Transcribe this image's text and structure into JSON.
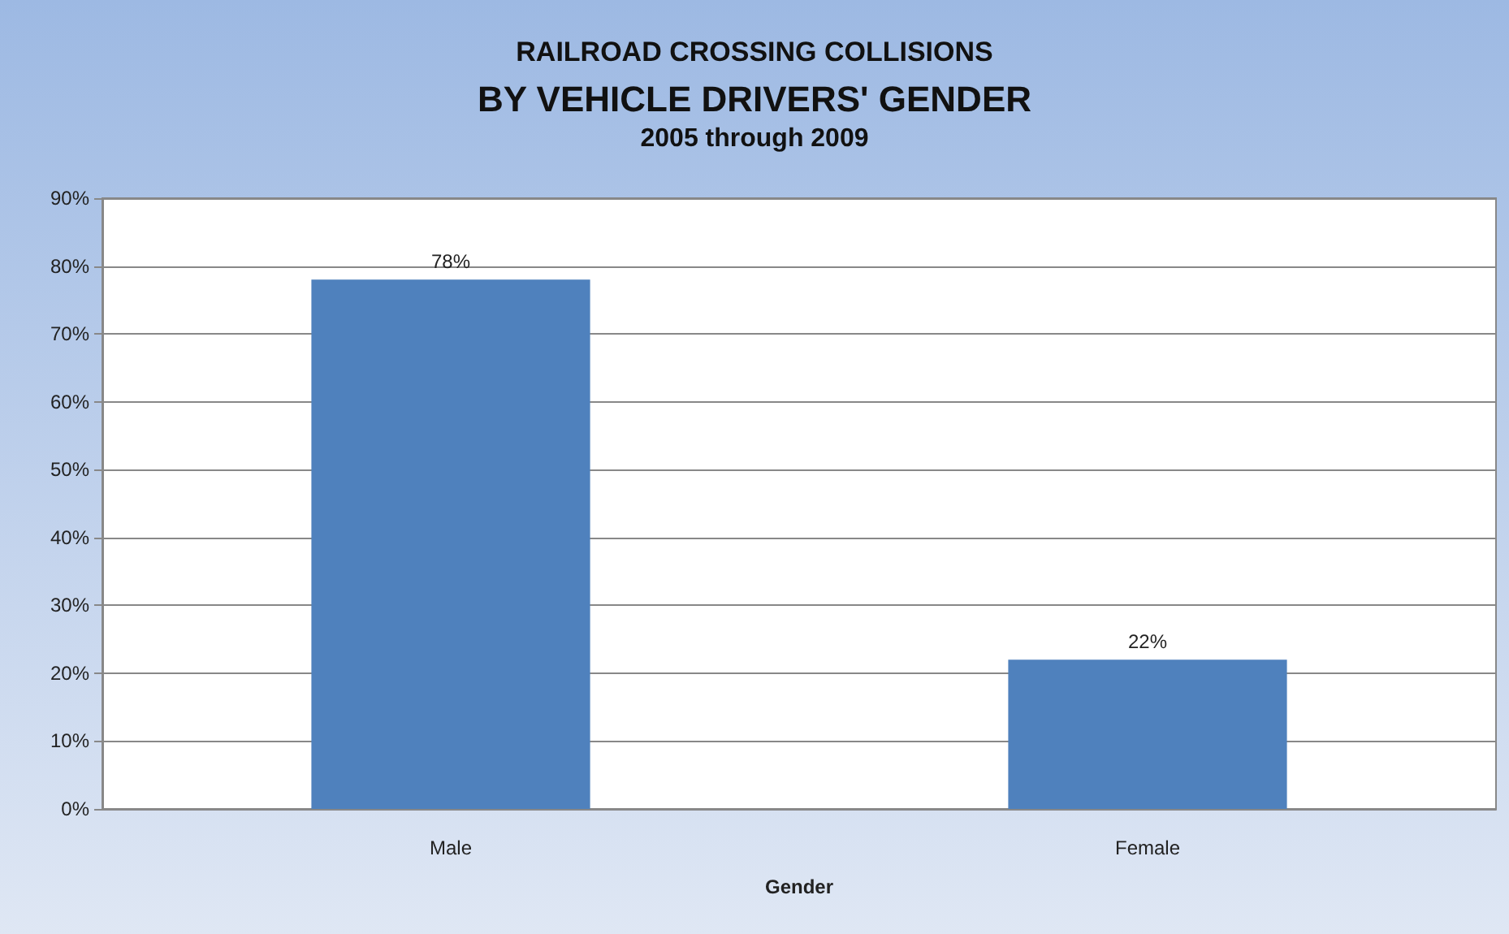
{
  "chart_data": {
    "type": "bar",
    "title": "RAILROAD CROSSING COLLISIONS\nBY VEHICLE DRIVERS' GENDER",
    "subtitle": "2005 through 2009",
    "xlabel": "Gender",
    "categories": [
      "Male",
      "Female"
    ],
    "values": [
      78,
      22
    ],
    "value_labels": [
      "78%",
      "22%"
    ],
    "color": "#4f81bd",
    "ylim": [
      0,
      90
    ],
    "yticks": [
      {
        "value": 0,
        "label": "0%"
      },
      {
        "value": 10,
        "label": "10%"
      },
      {
        "value": 20,
        "label": "20%"
      },
      {
        "value": 30,
        "label": "30%"
      },
      {
        "value": 40,
        "label": "40%"
      },
      {
        "value": 50,
        "label": "50%"
      },
      {
        "value": 60,
        "label": "60%"
      },
      {
        "value": 70,
        "label": "70%"
      },
      {
        "value": 80,
        "label": "80%"
      },
      {
        "value": 90,
        "label": "90%"
      }
    ],
    "grid": "y"
  }
}
